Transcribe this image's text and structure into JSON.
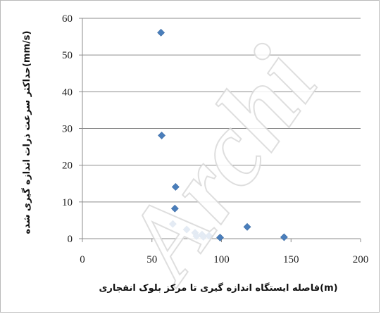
{
  "watermark": "Archi",
  "chart_data": {
    "type": "scatter",
    "marker_color": "#4a7ebb",
    "grid": true,
    "xlim": [
      0,
      200
    ],
    "ylim": [
      0,
      60
    ],
    "xticks": [
      0,
      50,
      100,
      150,
      200
    ],
    "yticks": [
      0,
      10,
      20,
      30,
      40,
      50,
      60
    ],
    "xlabel": "فاصله ایستگاه اندازه گیری تا مرکز بلوک انفجاری(m)",
    "ylabel": "حداکثر سرعت ذرات اندازه گیری شده(mm/s)",
    "points": [
      {
        "x": 56.5,
        "y": 56.1
      },
      {
        "x": 57.0,
        "y": 28.1
      },
      {
        "x": 67.0,
        "y": 14.1
      },
      {
        "x": 66.5,
        "y": 8.2
      },
      {
        "x": 65.0,
        "y": 4.0
      },
      {
        "x": 75.0,
        "y": 2.5
      },
      {
        "x": 81.0,
        "y": 1.6
      },
      {
        "x": 82.0,
        "y": 0.7
      },
      {
        "x": 86.0,
        "y": 1.1
      },
      {
        "x": 87.0,
        "y": 0.5
      },
      {
        "x": 91.0,
        "y": 0.8
      },
      {
        "x": 99.0,
        "y": 0.3
      },
      {
        "x": 118.5,
        "y": 3.2
      },
      {
        "x": 145.0,
        "y": 0.4
      }
    ]
  }
}
